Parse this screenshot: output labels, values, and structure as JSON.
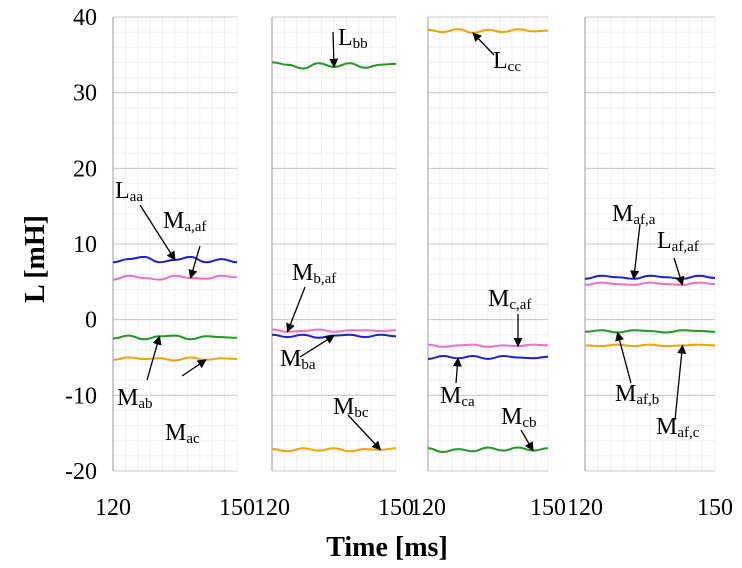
{
  "chart_data": {
    "type": "line",
    "ylabel": "L [mH]",
    "xlabel": "Time [ms]",
    "ylim": [
      -20,
      40
    ],
    "yticks": [
      40,
      30,
      20,
      10,
      0,
      -10,
      -20
    ],
    "grid": true,
    "colors": {
      "blue": "#1f1fd1",
      "pink": "#f06ec8",
      "green": "#229922",
      "orange": "#f5a000"
    },
    "panels": [
      {
        "xlim": [
          120,
          150
        ],
        "xtick_labels": [
          "120",
          "150"
        ],
        "series": [
          {
            "name": "Laa",
            "main": "L",
            "sub": "aa",
            "color": "blue",
            "values": [
              7.6,
              8.0,
              8.3,
              7.6,
              7.9,
              8.3,
              7.6,
              8.0,
              7.6
            ]
          },
          {
            "name": "Ma,af",
            "main": "M",
            "sub": "a,af",
            "color": "pink",
            "values": [
              5.3,
              5.8,
              5.5,
              5.3,
              5.8,
              5.5,
              5.4,
              5.8,
              5.6
            ]
          },
          {
            "name": "Mab",
            "main": "M",
            "sub": "ab",
            "color": "green",
            "values": [
              -2.5,
              -2.1,
              -2.6,
              -2.2,
              -2.1,
              -2.6,
              -2.2,
              -2.3,
              -2.4
            ]
          },
          {
            "name": "Mac",
            "main": "M",
            "sub": "ac",
            "color": "orange",
            "values": [
              -5.3,
              -5.0,
              -5.2,
              -5.1,
              -5.4,
              -5.0,
              -5.3,
              -5.1,
              -5.2
            ]
          }
        ]
      },
      {
        "xlim": [
          120,
          150
        ],
        "xtick_labels": [
          "120",
          "150"
        ],
        "series": [
          {
            "name": "Lbb",
            "main": "L",
            "sub": "bb",
            "color": "green",
            "values": [
              34.0,
              33.7,
              33.2,
              33.9,
              33.4,
              33.9,
              33.3,
              33.7,
              33.8
            ]
          },
          {
            "name": "Mb,af",
            "main": "M",
            "sub": "b,af",
            "color": "pink",
            "values": [
              -1.3,
              -1.6,
              -1.5,
              -1.3,
              -1.6,
              -1.4,
              -1.4,
              -1.5,
              -1.4
            ]
          },
          {
            "name": "Mba",
            "main": "M",
            "sub": "ba",
            "color": "blue",
            "values": [
              -2.0,
              -2.3,
              -2.0,
              -2.4,
              -2.1,
              -2.0,
              -2.3,
              -2.0,
              -2.2
            ]
          },
          {
            "name": "Mbc",
            "main": "M",
            "sub": "bc",
            "color": "orange",
            "values": [
              -17.1,
              -17.4,
              -17.0,
              -17.3,
              -17.0,
              -17.4,
              -17.1,
              -17.2,
              -17.0
            ]
          }
        ]
      },
      {
        "xlim": [
          120,
          150
        ],
        "xtick_labels": [
          "120",
          "150"
        ],
        "series": [
          {
            "name": "Lcc",
            "main": "L",
            "sub": "cc",
            "color": "orange",
            "values": [
              38.3,
              38.0,
              38.4,
              37.9,
              38.3,
              38.0,
              38.4,
              38.1,
              38.2
            ]
          },
          {
            "name": "Mc,af",
            "main": "M",
            "sub": "c,af",
            "color": "pink",
            "values": [
              -3.3,
              -3.6,
              -3.4,
              -3.3,
              -3.6,
              -3.4,
              -3.5,
              -3.3,
              -3.4
            ]
          },
          {
            "name": "Mca",
            "main": "M",
            "sub": "ca",
            "color": "blue",
            "values": [
              -5.2,
              -4.8,
              -5.1,
              -4.8,
              -5.2,
              -4.8,
              -5.0,
              -5.1,
              -4.9
            ]
          },
          {
            "name": "Mcb",
            "main": "M",
            "sub": "cb",
            "color": "green",
            "values": [
              -17.0,
              -17.5,
              -17.1,
              -17.4,
              -16.9,
              -17.3,
              -16.9,
              -17.3,
              -17.0
            ]
          }
        ]
      },
      {
        "xlim": [
          120,
          150
        ],
        "xtick_labels": [
          "120",
          "150"
        ],
        "series": [
          {
            "name": "Maf,a",
            "main": "M",
            "sub": "af,a",
            "color": "blue",
            "values": [
              5.4,
              5.8,
              5.6,
              5.4,
              5.8,
              5.6,
              5.4,
              5.8,
              5.5
            ]
          },
          {
            "name": "Laf,af",
            "main": "L",
            "sub": "af,af",
            "color": "pink",
            "values": [
              4.6,
              4.9,
              4.7,
              4.6,
              4.9,
              4.7,
              4.6,
              4.9,
              4.7
            ]
          },
          {
            "name": "Maf,b",
            "main": "M",
            "sub": "af,b",
            "color": "green",
            "values": [
              -1.6,
              -1.4,
              -1.7,
              -1.4,
              -1.5,
              -1.7,
              -1.4,
              -1.5,
              -1.6
            ]
          },
          {
            "name": "Maf,c",
            "main": "M",
            "sub": "af,c",
            "color": "orange",
            "values": [
              -3.4,
              -3.5,
              -3.3,
              -3.5,
              -3.3,
              -3.5,
              -3.4,
              -3.3,
              -3.4
            ]
          }
        ]
      }
    ]
  }
}
